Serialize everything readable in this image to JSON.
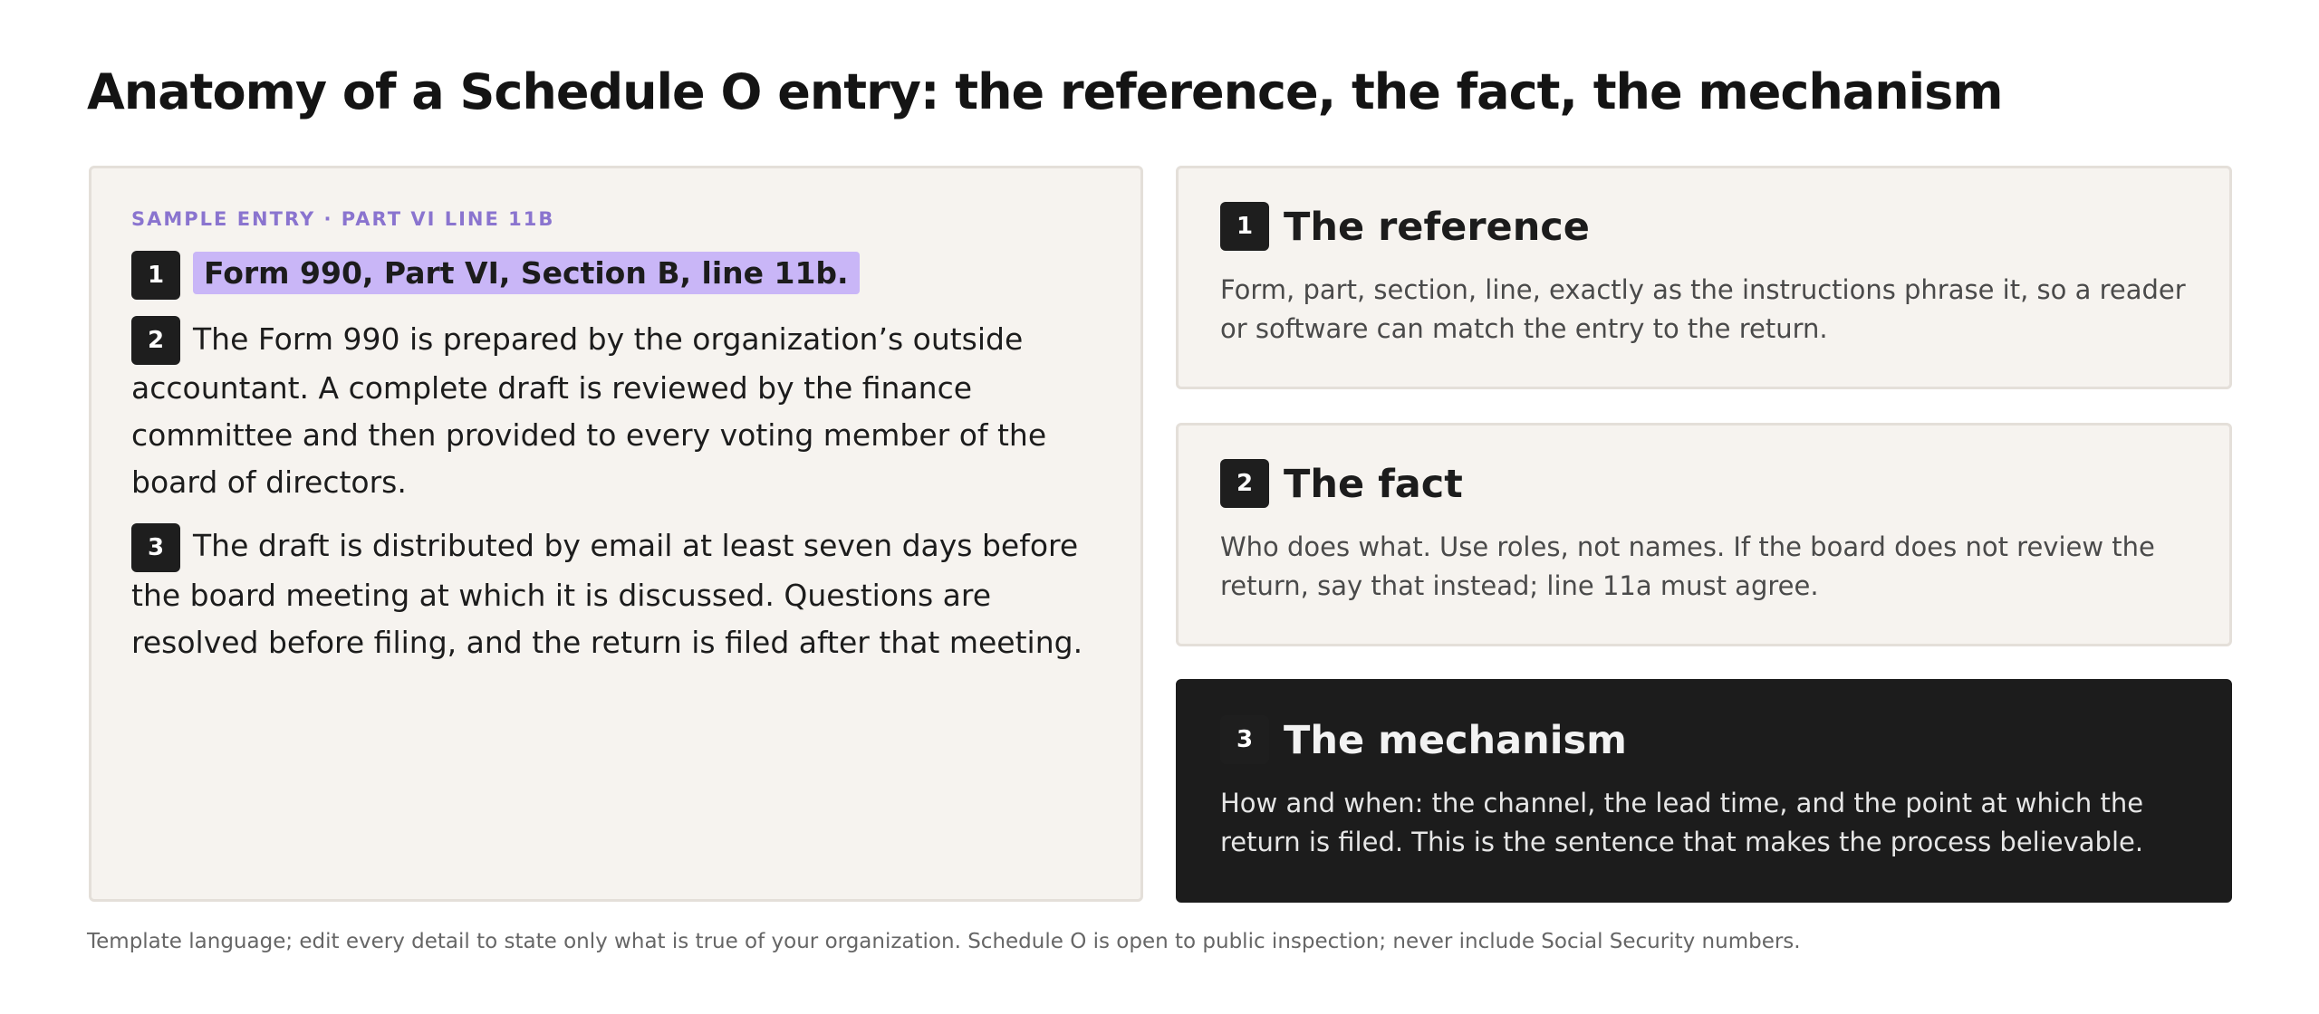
{
  "header": {
    "title": "Anatomy of a Schedule O entry: the reference, the fact, the mechanism"
  },
  "sample": {
    "label": "SAMPLE ENTRY · PART VI LINE 11B",
    "items": [
      {
        "number": "1",
        "text": "Form 990, Part VI, Section B, line 11b."
      },
      {
        "number": "2",
        "text": "The Form 990 is prepared by the organization’s outside accountant. A complete draft is reviewed by the finance committee and then provided to every voting member of the board of directors."
      },
      {
        "number": "3",
        "text": "The draft is distributed by email at least seven days before the board meeting at which it is discussed. Questions are resolved before filing, and the return is filed after that meeting."
      }
    ]
  },
  "cards": [
    {
      "number": "1",
      "title": "The reference",
      "body": "Form, part, section, line, exactly as the instructions phrase it, so a reader or software can match the entry to the return."
    },
    {
      "number": "2",
      "title": "The fact",
      "body": "Who does what. Use roles, not names. If the board does not review the return, say that instead; line 11a must agree."
    },
    {
      "number": "3",
      "title": "The mechanism",
      "body": "How and when: the channel, the lead time, and the point at which the return is filed. This is the sentence that makes the process believable."
    }
  ],
  "footer": {
    "note": "Template language; edit every detail to state only what is true of your organization. Schedule O is open to public inspection; never include Social Security numbers."
  }
}
